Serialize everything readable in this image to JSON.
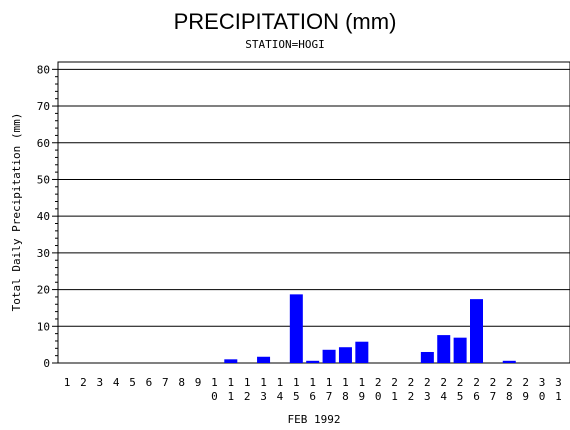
{
  "chart_data": {
    "type": "bar",
    "title": "PRECIPITATION (mm)",
    "subtitle": "STATION=HOGI",
    "xlabel": "FEB 1992",
    "ylabel": "Total Daily Precipitation (mm)",
    "ylim": [
      0,
      82
    ],
    "yticks": [
      0,
      10,
      20,
      30,
      40,
      50,
      60,
      70,
      80
    ],
    "grid": true,
    "bar_color": "#0000ff",
    "categories": [
      "1",
      "2",
      "3",
      "4",
      "5",
      "6",
      "7",
      "8",
      "9",
      "10",
      "11",
      "12",
      "13",
      "14",
      "15",
      "16",
      "17",
      "18",
      "19",
      "20",
      "21",
      "22",
      "23",
      "24",
      "25",
      "26",
      "27",
      "28",
      "29",
      "30",
      "31"
    ],
    "values": [
      0,
      0,
      0,
      0,
      0,
      0,
      0,
      0,
      0,
      0,
      1,
      0,
      1.7,
      0,
      18.7,
      0.6,
      3.6,
      4.3,
      5.8,
      0,
      0,
      0,
      3,
      7.6,
      6.9,
      17.4,
      0,
      0.6,
      0,
      0,
      0
    ]
  }
}
